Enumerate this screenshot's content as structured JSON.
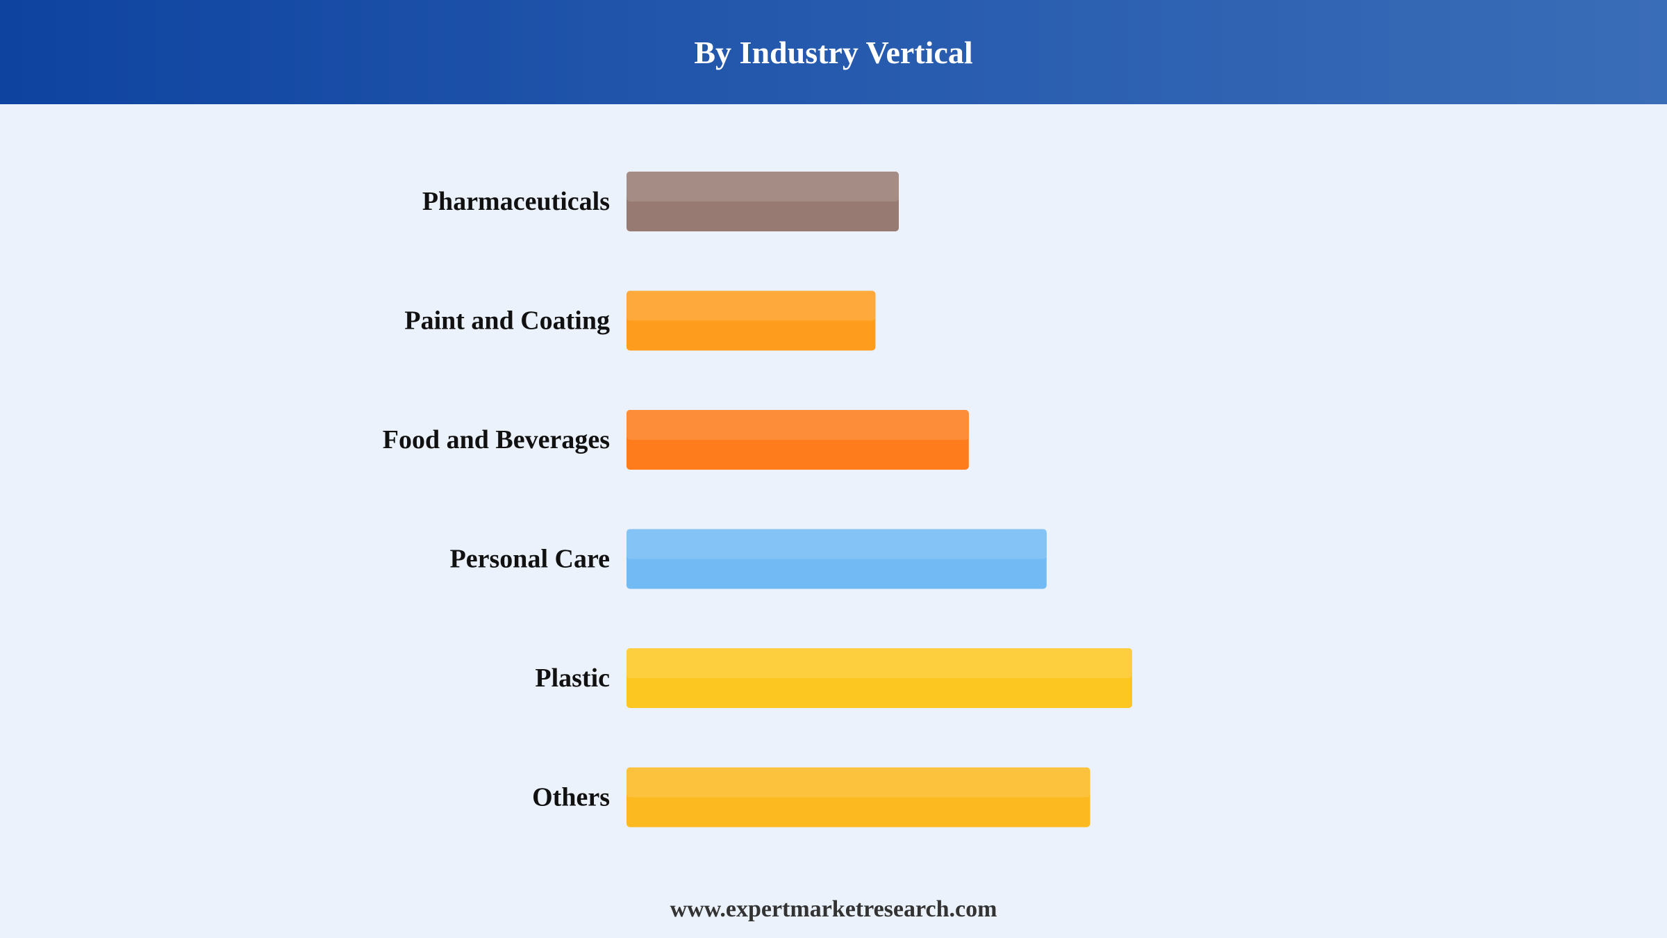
{
  "header": {
    "title": "By Industry Vertical"
  },
  "chart_data": {
    "type": "bar",
    "orientation": "horizontal",
    "title": "By Industry Vertical",
    "xlabel": "",
    "ylabel": "",
    "grid": false,
    "legend": "none",
    "categories": [
      "Pharmaceuticals",
      "Paint and Coating",
      "Food and Beverages",
      "Personal Care",
      "Plastic",
      "Others"
    ],
    "values": [
      35,
      32,
      44,
      54,
      65,
      59.6
    ],
    "xlim": [
      0,
      100
    ],
    "colors": [
      "#977b72",
      "#fe9c1e",
      "#fe7c1c",
      "#72baf4",
      "#fdc721",
      "#fdb920"
    ]
  },
  "footer": {
    "website": "www.expertmarketresearch.com"
  }
}
